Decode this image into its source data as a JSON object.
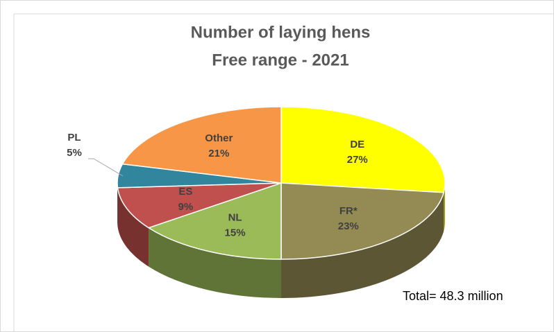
{
  "chart_data": {
    "type": "pie3d",
    "title": "Number of laying hens",
    "subtitle": "Free range - 2021",
    "categories": [
      "DE",
      "FR*",
      "NL",
      "ES",
      "PL",
      "Other"
    ],
    "values": [
      27,
      23,
      15,
      9,
      5,
      21
    ],
    "value_labels": [
      "27%",
      "23%",
      "15%",
      "9%",
      "5%",
      "21%"
    ],
    "colors": [
      "#ffff00",
      "#948a54",
      "#9bbb59",
      "#c0504d",
      "#31859c",
      "#f79646"
    ],
    "annotation": "Total= 48.3 million"
  }
}
